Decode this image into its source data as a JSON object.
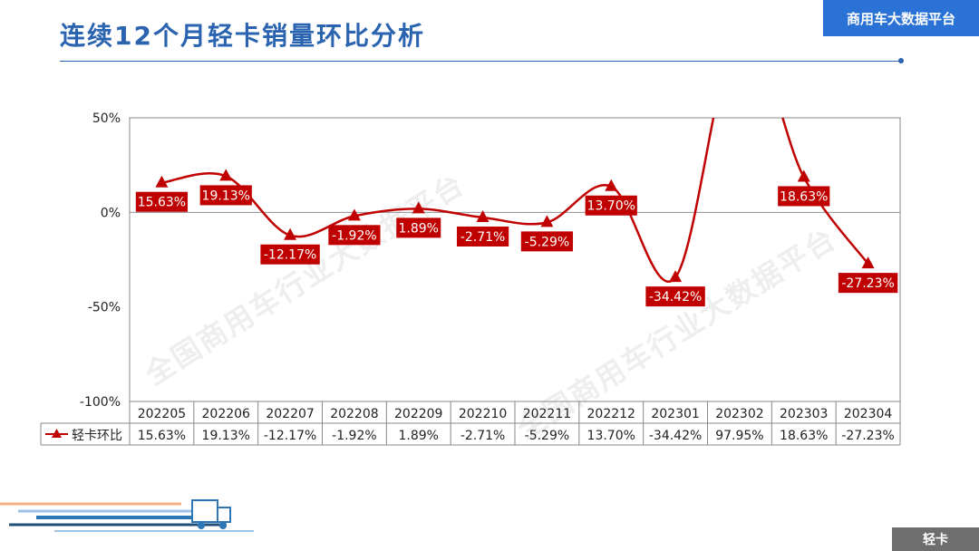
{
  "title": "连续12个月轻卡销量环比分析",
  "brand": "商用车大数据平台",
  "category_tag": "轻卡",
  "watermark": "全国商用车行业大数据平台",
  "colors": {
    "series": "#c00000",
    "accent": "#2b72d6",
    "grid": "#888888"
  },
  "chart_data": {
    "type": "line",
    "title": "",
    "xlabel": "",
    "ylabel": "",
    "categories": [
      "202205",
      "202206",
      "202207",
      "202208",
      "202209",
      "202210",
      "202211",
      "202212",
      "202301",
      "202302",
      "202303",
      "202304"
    ],
    "series": [
      {
        "name": "轻卡环比",
        "values": [
          15.63,
          19.13,
          -12.17,
          -1.92,
          1.89,
          -2.71,
          -5.29,
          13.7,
          -34.42,
          97.95,
          18.63,
          -27.23
        ],
        "labels": [
          "15.63%",
          "19.13%",
          "-12.17%",
          "-1.92%",
          "1.89%",
          "-2.71%",
          "-5.29%",
          "13.70%",
          "-34.42%",
          "97.95%",
          "18.63%",
          "-27.23%"
        ],
        "marker": "triangle",
        "smooth": true
      }
    ],
    "ylim": [
      -100,
      50
    ],
    "yticks": [
      50,
      0,
      -50,
      -100
    ],
    "ytick_labels": [
      "50%",
      "0%",
      "-50%",
      "-100%"
    ],
    "grid": false,
    "data_table": true
  }
}
